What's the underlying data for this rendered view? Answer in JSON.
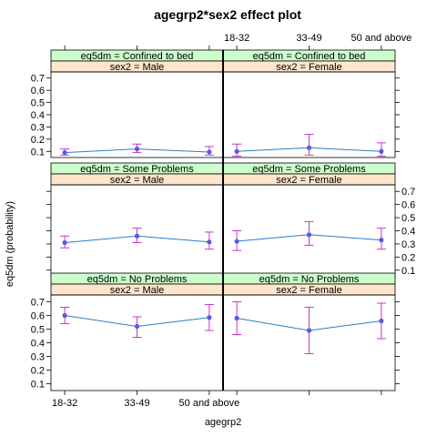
{
  "chart_data": {
    "type": "line",
    "title": "agegrp2*sex2 effect plot",
    "xlabel": "agegrp2",
    "ylabel": "eq5dm (probability)",
    "categories": [
      "18-32",
      "33-49",
      "50 and above"
    ],
    "ylim": [
      0.05,
      0.75
    ],
    "yticks": [
      0.1,
      0.2,
      0.3,
      0.4,
      0.5,
      0.6,
      0.7
    ],
    "grid": false,
    "line_color": "#2a7fc8",
    "point_color": "#5a5adc",
    "errorbar_color": "#cc33cc",
    "strip_colors": {
      "outer": "#ccffcc",
      "inner": "#ffe5cc"
    },
    "panels": [
      {
        "row": 0,
        "col": 0,
        "strip_outer": "eq5dm = Confined to bed",
        "strip_inner": "sex2 = Male",
        "values": [
          0.09,
          0.12,
          0.095
        ],
        "lower": [
          0.07,
          0.09,
          0.07
        ],
        "upper": [
          0.12,
          0.16,
          0.14
        ]
      },
      {
        "row": 0,
        "col": 1,
        "strip_outer": "eq5dm = Confined to bed",
        "strip_inner": "sex2 = Female",
        "values": [
          0.1,
          0.13,
          0.1
        ],
        "lower": [
          0.06,
          0.07,
          0.06
        ],
        "upper": [
          0.16,
          0.24,
          0.17
        ]
      },
      {
        "row": 1,
        "col": 0,
        "strip_outer": "eq5dm = Some Problems",
        "strip_inner": "sex2 = Male",
        "values": [
          0.31,
          0.36,
          0.315
        ],
        "lower": [
          0.27,
          0.31,
          0.26
        ],
        "upper": [
          0.36,
          0.42,
          0.39
        ]
      },
      {
        "row": 1,
        "col": 1,
        "strip_outer": "eq5dm = Some Problems",
        "strip_inner": "sex2 = Female",
        "values": [
          0.32,
          0.37,
          0.33
        ],
        "lower": [
          0.25,
          0.29,
          0.26
        ],
        "upper": [
          0.4,
          0.47,
          0.42
        ]
      },
      {
        "row": 2,
        "col": 0,
        "strip_outer": "eq5dm = No Problems",
        "strip_inner": "sex2 = Male",
        "values": [
          0.6,
          0.52,
          0.585
        ],
        "lower": [
          0.54,
          0.44,
          0.49
        ],
        "upper": [
          0.66,
          0.59,
          0.68
        ]
      },
      {
        "row": 2,
        "col": 1,
        "strip_outer": "eq5dm = No Problems",
        "strip_inner": "sex2 = Female",
        "values": [
          0.58,
          0.49,
          0.56
        ],
        "lower": [
          0.46,
          0.32,
          0.43
        ],
        "upper": [
          0.7,
          0.66,
          0.69
        ]
      }
    ]
  }
}
